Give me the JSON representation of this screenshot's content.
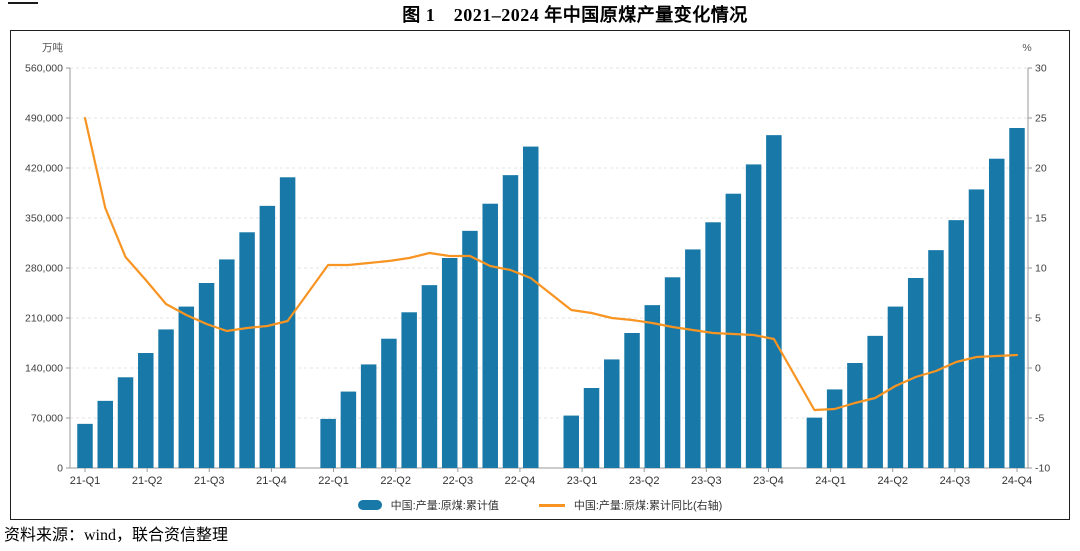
{
  "page": {
    "title": "图 1　2021–2024 年中国原煤产量变化情况",
    "source_note": "资料来源：wind，联合资信整理"
  },
  "chart_data": {
    "type": "bar+line",
    "title": "图 1　2021–2024 年中国原煤产量变化情况",
    "grid": "horizontal-dashed",
    "legend_position": "bottom-center",
    "bars_per_year": 11,
    "left_axis": {
      "unit": "万吨",
      "min": 0,
      "max": 560000,
      "tick_step": 70000,
      "tick_labels": [
        "0",
        "70,000",
        "140,000",
        "210,000",
        "280,000",
        "350,000",
        "420,000",
        "490,000",
        "560,000"
      ]
    },
    "right_axis": {
      "unit": "%",
      "min": -10,
      "max": 30,
      "tick_step": 5,
      "tick_labels": [
        "-10",
        "-5",
        "0",
        "5",
        "10",
        "15",
        "20",
        "25",
        "30"
      ]
    },
    "x_tick_labels": [
      "21-Q1",
      "21-Q2",
      "21-Q3",
      "21-Q4",
      "22-Q1",
      "22-Q2",
      "22-Q3",
      "22-Q4",
      "23-Q1",
      "23-Q2",
      "23-Q3",
      "23-Q4",
      "24-Q1",
      "24-Q2",
      "24-Q3",
      "24-Q4"
    ],
    "bar_series": {
      "name": "中国:产量:原煤:累计值",
      "axis": "left",
      "color": "#1878a8",
      "values_by_year": [
        {
          "year": "21",
          "values": [
            61800,
            94000,
            127000,
            161000,
            194000,
            226000,
            259000,
            292000,
            330000,
            367000,
            407000
          ]
        },
        {
          "year": "22",
          "values": [
            68700,
            107000,
            145000,
            181000,
            218000,
            256000,
            294000,
            332000,
            370000,
            410000,
            450000
          ]
        },
        {
          "year": "23",
          "values": [
            73400,
            112000,
            152000,
            189000,
            228000,
            267000,
            306000,
            344000,
            384000,
            425000,
            466000
          ]
        },
        {
          "year": "24",
          "values": [
            70500,
            110000,
            147000,
            185000,
            226000,
            266000,
            305000,
            347000,
            390000,
            433000,
            476000
          ]
        }
      ]
    },
    "line_series": {
      "name": "中国:产量:原煤:累计同比(右轴)",
      "axis": "right",
      "color": "#f79422",
      "values_by_year": [
        {
          "year": "21",
          "values": [
            25.0,
            16.0,
            11.1,
            8.8,
            6.4,
            5.3,
            4.4,
            3.7,
            4.0,
            4.2,
            4.7
          ]
        },
        {
          "year": "22",
          "values": [
            10.3,
            10.3,
            10.5,
            10.7,
            11.0,
            11.5,
            11.2,
            11.2,
            10.2,
            9.8,
            9.0
          ]
        },
        {
          "year": "23",
          "values": [
            5.8,
            5.5,
            5.0,
            4.8,
            4.5,
            4.1,
            3.8,
            3.5,
            3.4,
            3.3,
            2.9
          ]
        },
        {
          "year": "24",
          "values": [
            -4.2,
            -4.1,
            -3.5,
            -3.0,
            -1.8,
            -0.9,
            -0.3,
            0.6,
            1.1,
            1.2,
            1.3
          ]
        }
      ]
    }
  }
}
